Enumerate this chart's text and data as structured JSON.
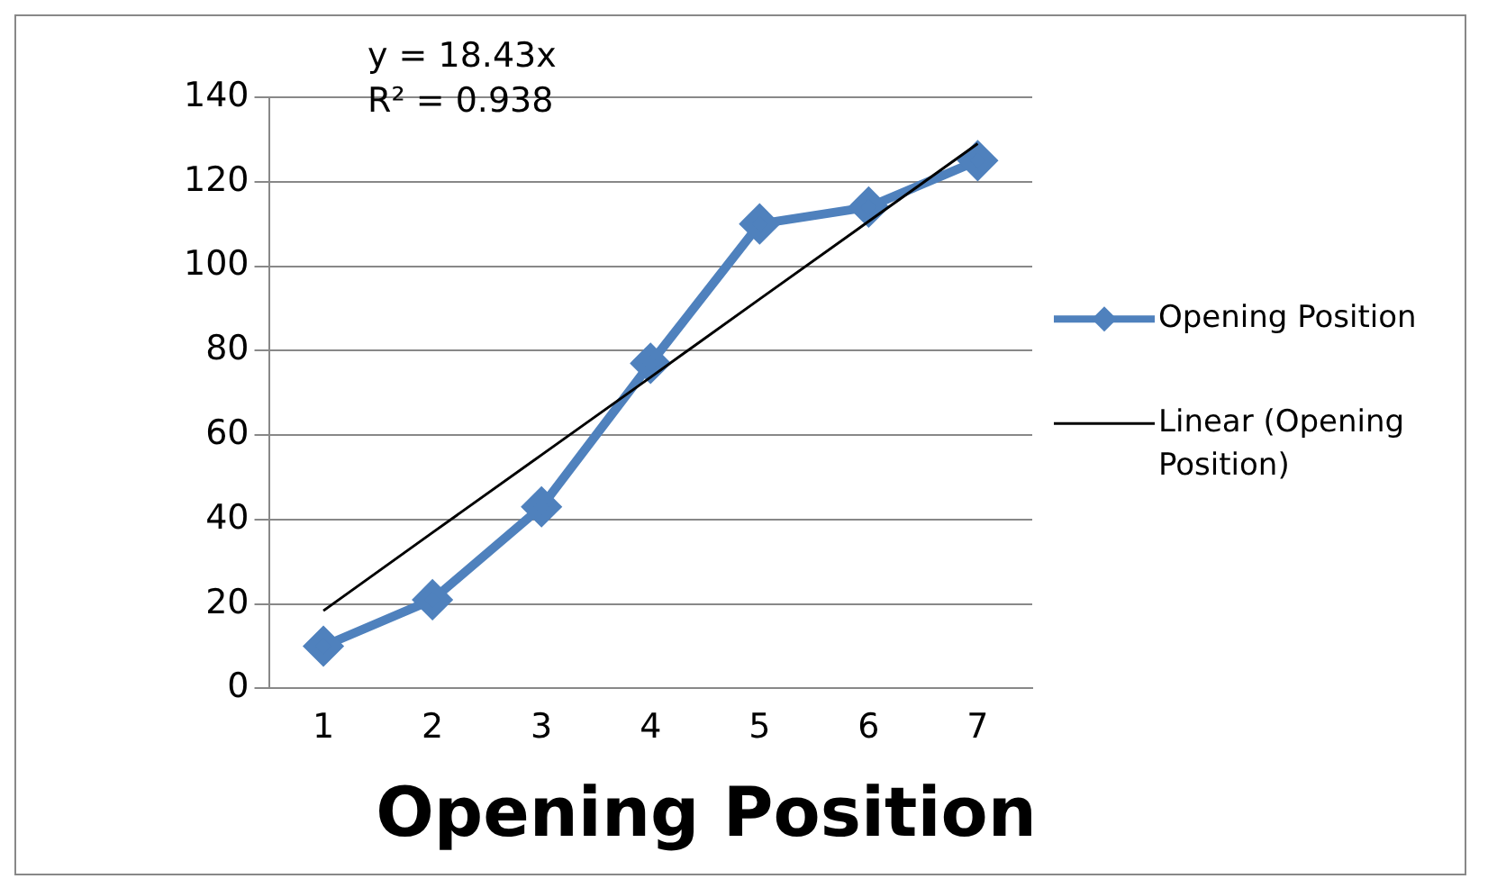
{
  "chart_data": {
    "type": "line",
    "title": "Opening Position",
    "categories": [
      "1",
      "2",
      "3",
      "4",
      "5",
      "6",
      "7"
    ],
    "series": [
      {
        "name": "Opening Position",
        "color": "#4f81bd",
        "values": [
          10,
          21,
          43,
          77,
          110,
          114,
          125
        ],
        "marker": "diamond"
      },
      {
        "name": "Linear (Opening Position)",
        "color": "#000000",
        "values": [
          18.4,
          36.9,
          55.3,
          73.7,
          92.2,
          110.6,
          129
        ],
        "marker": "none"
      }
    ],
    "ylim": [
      0,
      140
    ],
    "yticks": [
      0,
      20,
      40,
      60,
      80,
      100,
      120,
      140
    ],
    "grid": "y",
    "legend": "right",
    "annotations": [
      "y = 18.43x",
      "R² = 0.938"
    ]
  }
}
